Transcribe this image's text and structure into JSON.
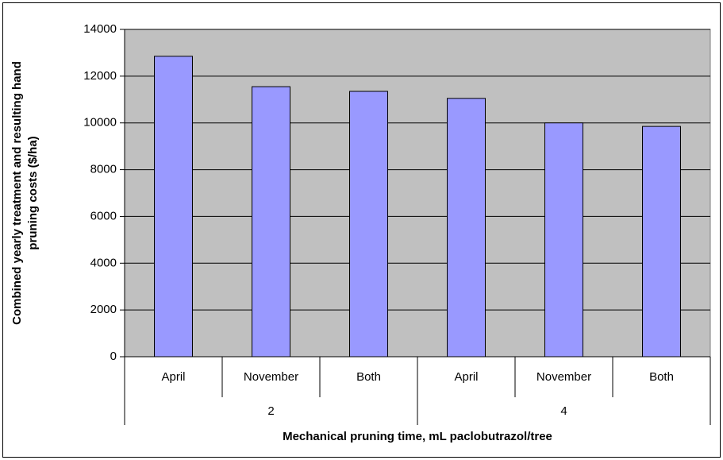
{
  "chart_data": {
    "type": "bar",
    "x_label": "Mechanical pruning time, mL paclobutrazol/tree",
    "y_label_lines": [
      "Combined yearly treatment and resulting hand",
      "pruning costs ($/ha)"
    ],
    "categories": [
      "April",
      "November",
      "Both",
      "April",
      "November",
      "Both"
    ],
    "groups": [
      "2",
      "4"
    ],
    "values": [
      12850,
      11550,
      11350,
      11050,
      10000,
      9850
    ],
    "color": "#9999ff",
    "plot_background": "#c0c0c0",
    "ylim": [
      0,
      14000
    ],
    "yticks": [
      0,
      2000,
      4000,
      6000,
      8000,
      10000,
      12000,
      14000
    ],
    "grid": true
  }
}
